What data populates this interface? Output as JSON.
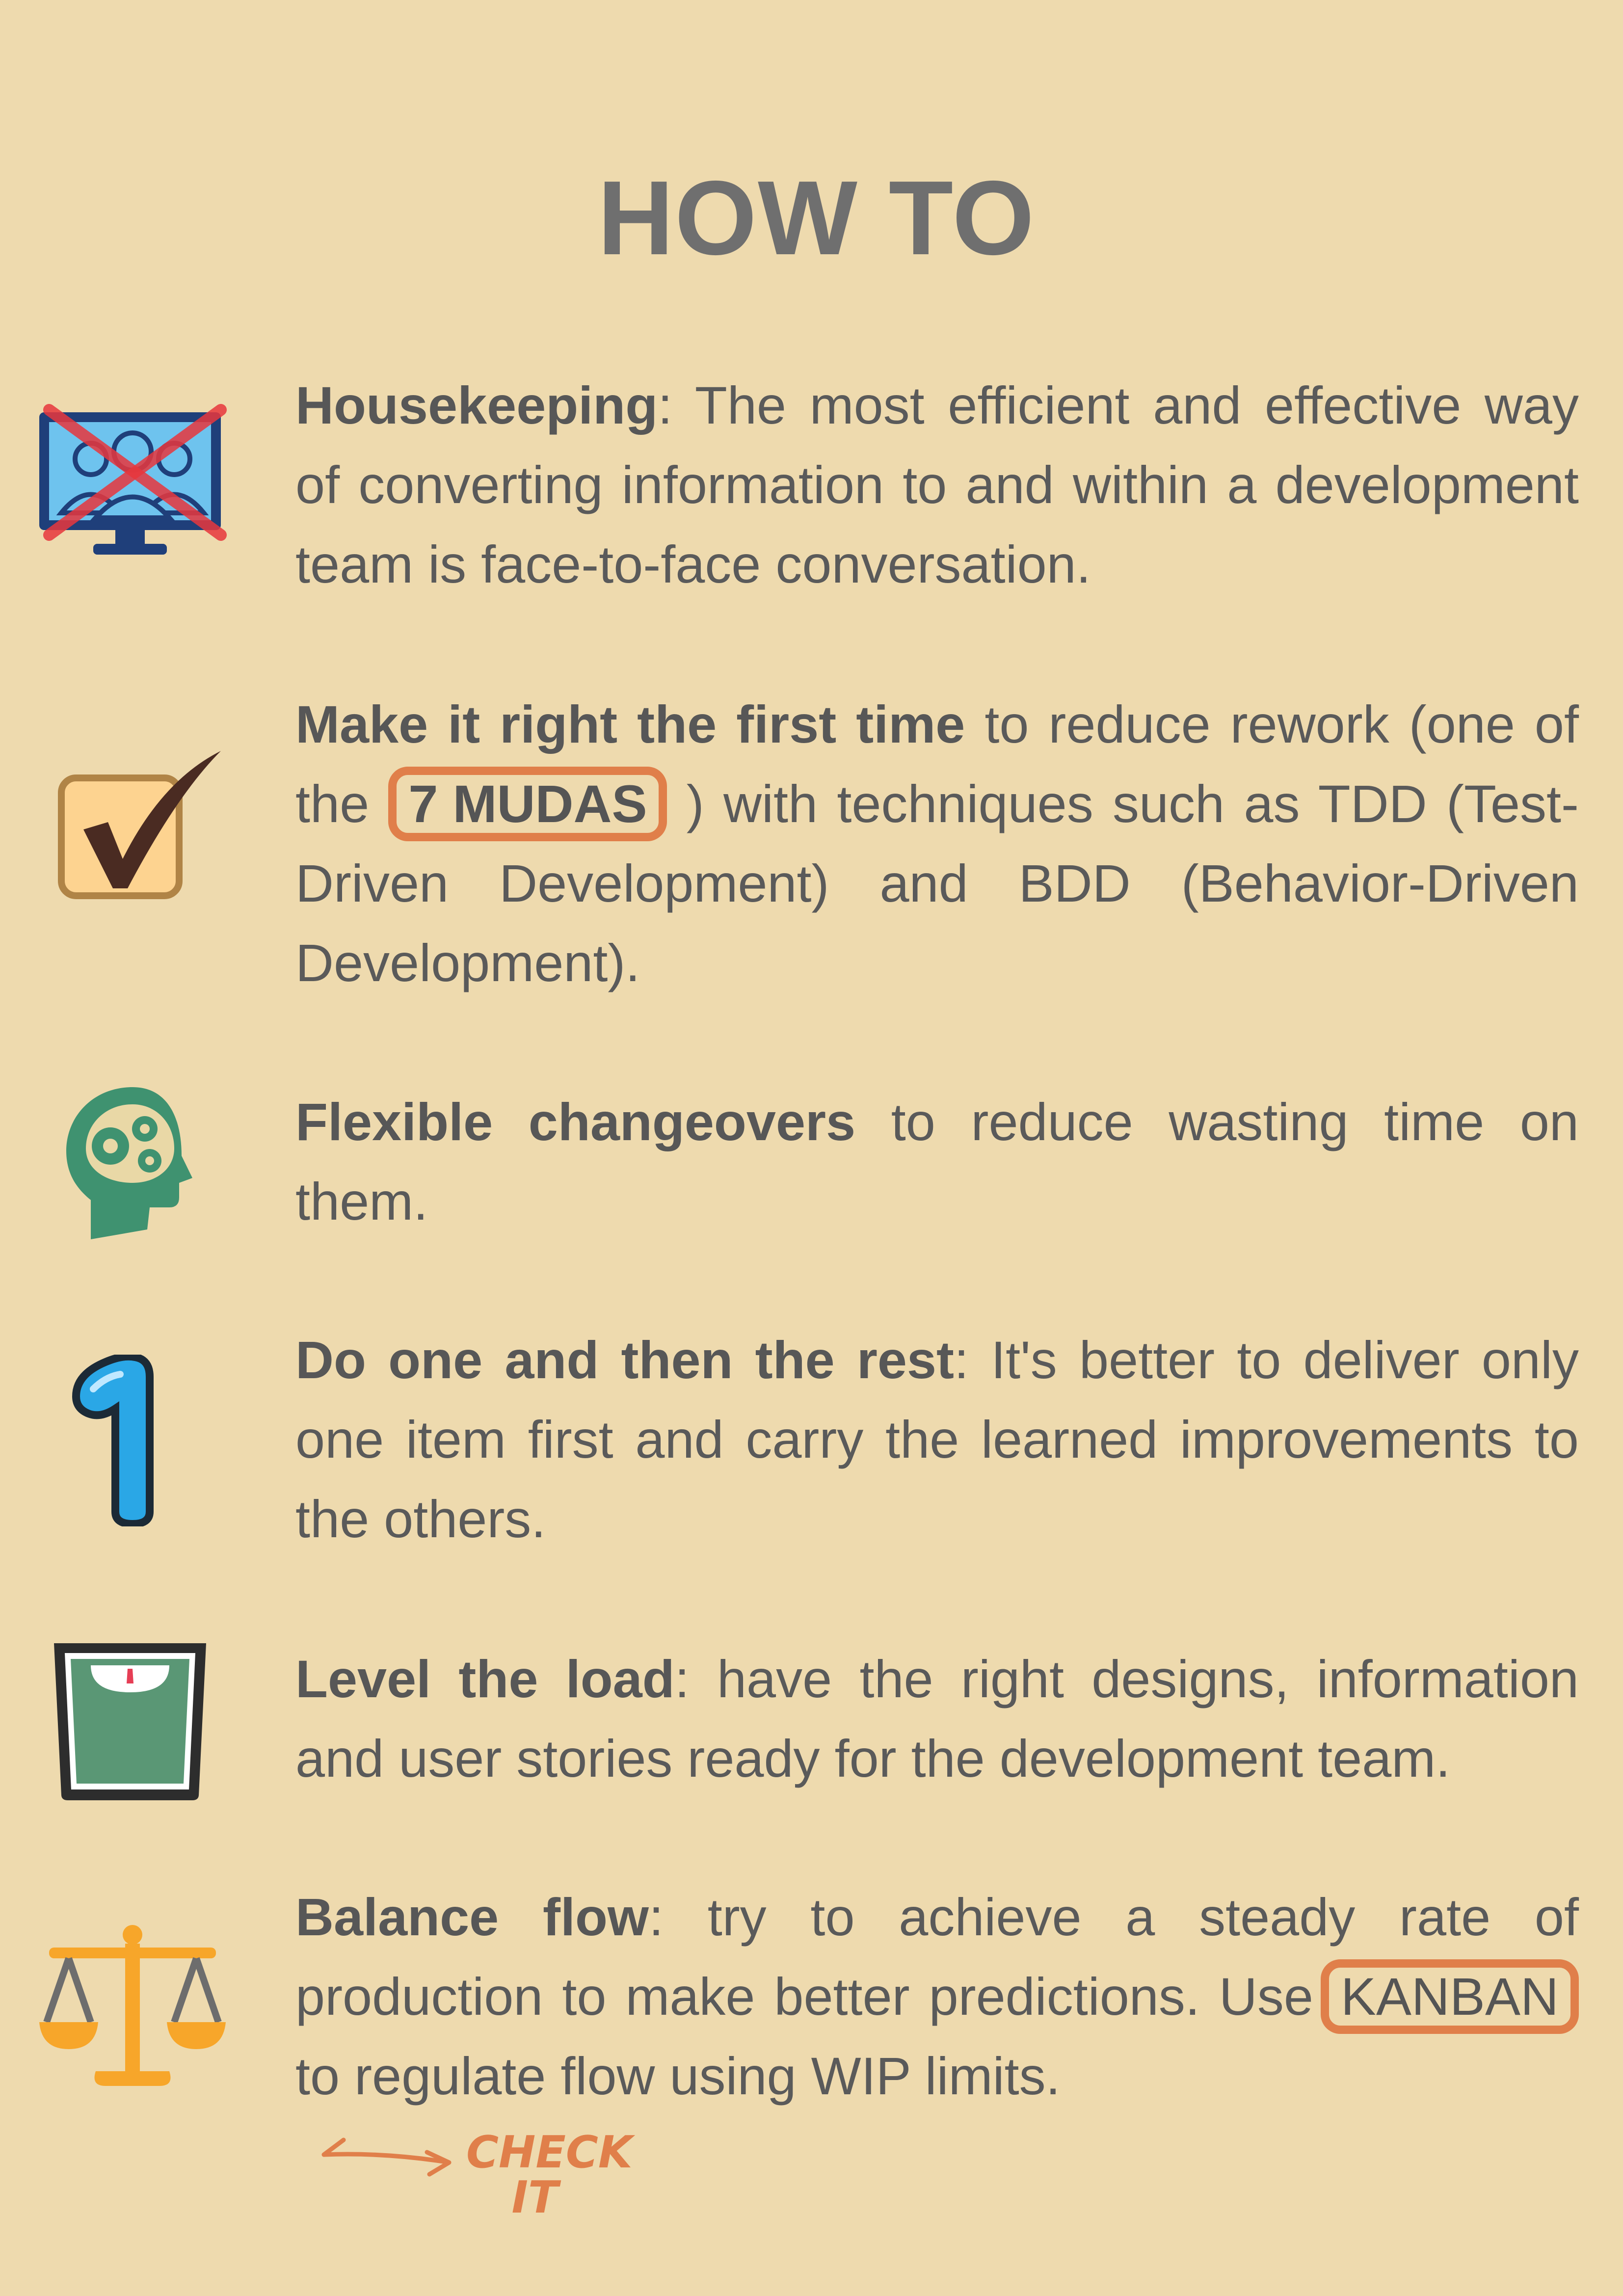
{
  "title": "HOW TO",
  "items": [
    {
      "icon": "monitor-crossed-icon",
      "bold": "Housekeeping",
      "after": ": The most efficient and effective way of converting information to and within a development team is face-to-face conversation."
    },
    {
      "icon": "checkbox-check-icon",
      "bold": "Make it right the first time",
      "before_badge": " to reduce rework (one of the ",
      "badge": "7 MUDAS",
      "after_badge": " ) with techniques such as TDD (Test-Driven Development) and BDD (Behavior-Driven Development)."
    },
    {
      "icon": "head-gears-icon",
      "bold": "Flexible changeovers",
      "after": " to reduce wasting time on them."
    },
    {
      "icon": "number-one-icon",
      "bold": "Do one and then the rest",
      "after": ": It's better to deliver only one item first and carry the learned improvements to the others."
    },
    {
      "icon": "weighing-scale-icon",
      "bold": "Level the load",
      "after": ": have the right designs, information and user stories ready for the development team."
    },
    {
      "icon": "balance-scale-icon",
      "bold": "Balance flow",
      "after_bold": ": try to achieve a steady rate of production to make better predictions. Use ",
      "badge": "KANBAN",
      "after_badge": " to regulate flow using WIP limits."
    }
  ],
  "check_note": {
    "line1": "CHECK",
    "line2": "IT"
  },
  "colors": {
    "background": "#eedaae",
    "accent": "#e07f4a",
    "text": "#5a5a5a",
    "title": "#6f6f6f"
  }
}
